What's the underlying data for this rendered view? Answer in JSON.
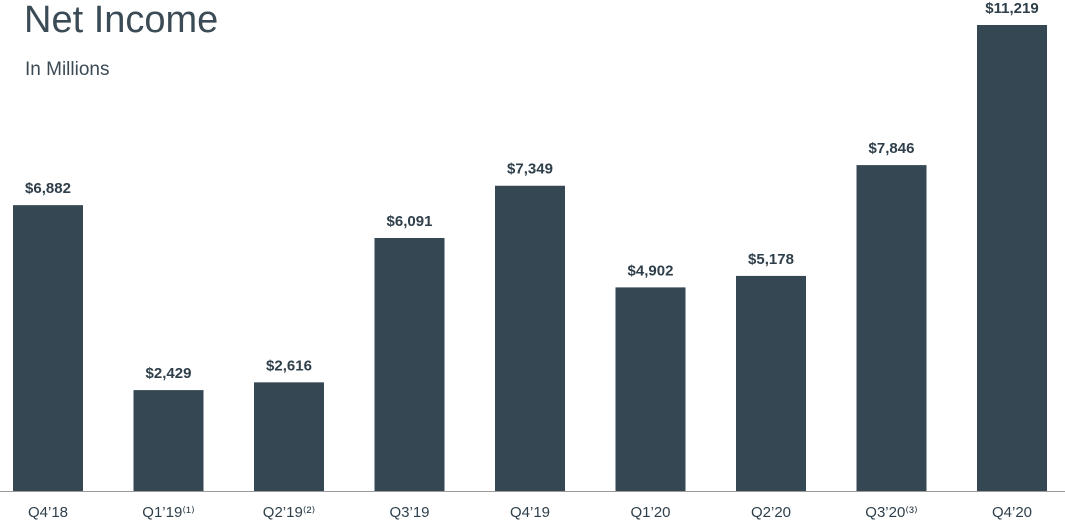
{
  "chart_data": {
    "type": "bar",
    "title": "Net Income",
    "subtitle": "In Millions",
    "categories": [
      "Q4’18",
      "Q1’19⁽¹⁾",
      "Q2’19⁽²⁾",
      "Q3’19",
      "Q4’19",
      "Q1’20",
      "Q2’20",
      "Q3’20⁽³⁾",
      "Q4’20"
    ],
    "values": [
      6882,
      2429,
      2616,
      6091,
      7349,
      4902,
      5178,
      7846,
      11219
    ],
    "value_labels": [
      "$6,882",
      "$2,429",
      "$2,616",
      "$6,091",
      "$7,349",
      "$4,902",
      "$5,178",
      "$7,846",
      "$11,219"
    ],
    "color": "#354753"
  }
}
